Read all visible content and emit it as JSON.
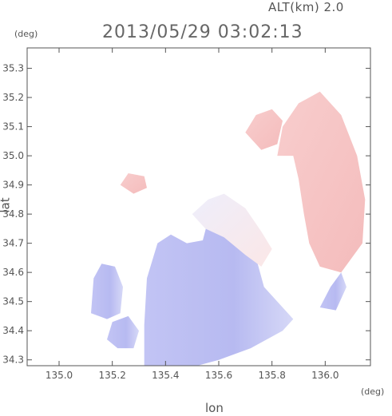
{
  "header": {
    "altitude_label": "ALT(km) 2.0",
    "timestamp": "2013/05/29 03:02:13"
  },
  "axes": {
    "y_unit": "(deg)",
    "x_unit": "(deg)",
    "y_title": "lat",
    "x_title": "lon"
  },
  "colors": {
    "negative": "#b9bcf2",
    "negative_light": "#d3d5f7",
    "positive": "#f6c1c1",
    "positive_light": "#fbe0e0",
    "near_zero": "#f3f3fb"
  },
  "chart_data": {
    "type": "heatmap",
    "variable": "Doppler velocity (relative)",
    "xlabel": "lon",
    "ylabel": "lat",
    "xlim": [
      134.88,
      136.17
    ],
    "ylim": [
      34.28,
      35.37
    ],
    "xticks": [
      135.0,
      135.2,
      135.4,
      135.6,
      135.8,
      136.0
    ],
    "yticks": [
      34.3,
      34.4,
      34.5,
      34.6,
      34.7,
      34.8,
      34.9,
      35.0,
      35.1,
      35.2,
      35.3
    ],
    "grid": false,
    "regions": [
      {
        "name": "main-southern-echo",
        "sign": "negative",
        "polygon": [
          [
            135.32,
            34.28
          ],
          [
            135.32,
            34.42
          ],
          [
            135.33,
            34.58
          ],
          [
            135.37,
            34.7
          ],
          [
            135.42,
            34.73
          ],
          [
            135.48,
            34.7
          ],
          [
            135.54,
            34.71
          ],
          [
            135.56,
            34.78
          ],
          [
            135.6,
            34.76
          ],
          [
            135.66,
            34.74
          ],
          [
            135.7,
            34.7
          ],
          [
            135.74,
            34.65
          ],
          [
            135.77,
            34.55
          ],
          [
            135.8,
            34.52
          ],
          [
            135.84,
            34.48
          ],
          [
            135.88,
            34.44
          ],
          [
            135.84,
            34.4
          ],
          [
            135.72,
            34.34
          ],
          [
            135.6,
            34.3
          ],
          [
            135.52,
            34.28
          ]
        ]
      },
      {
        "name": "north-transition-echo",
        "sign": "near_zero",
        "polygon": [
          [
            135.5,
            34.8
          ],
          [
            135.56,
            34.85
          ],
          [
            135.62,
            34.87
          ],
          [
            135.7,
            34.82
          ],
          [
            135.76,
            34.74
          ],
          [
            135.8,
            34.68
          ],
          [
            135.76,
            34.62
          ],
          [
            135.7,
            34.66
          ],
          [
            135.62,
            34.72
          ],
          [
            135.55,
            34.75
          ]
        ]
      },
      {
        "name": "western-island-echo",
        "sign": "negative",
        "polygon": [
          [
            135.12,
            34.46
          ],
          [
            135.13,
            34.58
          ],
          [
            135.16,
            34.63
          ],
          [
            135.21,
            34.62
          ],
          [
            135.24,
            34.55
          ],
          [
            135.23,
            34.46
          ],
          [
            135.18,
            34.44
          ]
        ]
      },
      {
        "name": "southwest-patch",
        "sign": "negative",
        "polygon": [
          [
            135.18,
            34.37
          ],
          [
            135.2,
            34.43
          ],
          [
            135.26,
            34.45
          ],
          [
            135.3,
            34.4
          ],
          [
            135.28,
            34.34
          ],
          [
            135.22,
            34.34
          ]
        ]
      },
      {
        "name": "eastern-arc-echo",
        "sign": "positive",
        "polygon": [
          [
            135.82,
            35.0
          ],
          [
            135.84,
            35.1
          ],
          [
            135.9,
            35.18
          ],
          [
            135.98,
            35.22
          ],
          [
            136.06,
            35.14
          ],
          [
            136.12,
            35.0
          ],
          [
            136.15,
            34.85
          ],
          [
            136.14,
            34.7
          ],
          [
            136.06,
            34.6
          ],
          [
            135.98,
            34.62
          ],
          [
            135.94,
            34.7
          ],
          [
            135.92,
            34.8
          ],
          [
            135.9,
            34.92
          ],
          [
            135.88,
            35.0
          ]
        ]
      },
      {
        "name": "eastern-south-strip",
        "sign": "negative",
        "polygon": [
          [
            135.98,
            34.48
          ],
          [
            136.02,
            34.55
          ],
          [
            136.06,
            34.6
          ],
          [
            136.08,
            34.55
          ],
          [
            136.04,
            34.47
          ]
        ]
      },
      {
        "name": "north-small-echo",
        "sign": "positive",
        "polygon": [
          [
            135.23,
            34.9
          ],
          [
            135.26,
            34.94
          ],
          [
            135.32,
            34.93
          ],
          [
            135.33,
            34.89
          ],
          [
            135.28,
            34.87
          ]
        ]
      },
      {
        "name": "northern-inner-echo",
        "sign": "positive",
        "polygon": [
          [
            135.7,
            35.08
          ],
          [
            135.74,
            35.14
          ],
          [
            135.8,
            35.16
          ],
          [
            135.84,
            35.12
          ],
          [
            135.82,
            35.04
          ],
          [
            135.76,
            35.02
          ]
        ]
      }
    ]
  }
}
